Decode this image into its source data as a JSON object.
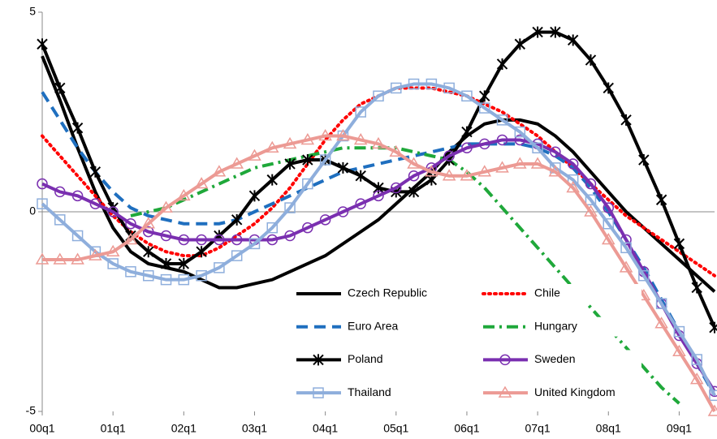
{
  "chart_data": {
    "type": "line",
    "categories": [
      "00q1",
      null,
      null,
      null,
      "01q1",
      null,
      null,
      null,
      "02q1",
      null,
      null,
      null,
      "03q1",
      null,
      null,
      null,
      "04q1",
      null,
      null,
      null,
      "05q1",
      null,
      null,
      null,
      "06q1",
      null,
      null,
      null,
      "07q1",
      null,
      null,
      null,
      "08q1",
      null,
      null,
      null,
      "09q1",
      null,
      null
    ],
    "ylim": [
      -5,
      5
    ],
    "yticks": [
      -5,
      0,
      5
    ],
    "series": [
      {
        "name": "Czech Republic",
        "color": "#000000",
        "dash": "solid",
        "marker": "none",
        "values": [
          3.9,
          2.8,
          1.6,
          0.5,
          -0.4,
          -1.0,
          -1.3,
          -1.4,
          -1.5,
          -1.7,
          -1.9,
          -1.9,
          -1.8,
          -1.7,
          -1.5,
          -1.3,
          -1.1,
          -0.8,
          -0.5,
          -0.2,
          0.2,
          0.6,
          1.0,
          1.5,
          1.9,
          2.2,
          2.3,
          2.3,
          2.2,
          1.9,
          1.5,
          1.0,
          0.5,
          0.0,
          -0.4,
          -0.8,
          -1.2,
          -1.6,
          -2.0
        ]
      },
      {
        "name": "Chile",
        "color": "#ff0000",
        "dash": "dot",
        "marker": "none",
        "values": [
          1.9,
          1.4,
          0.9,
          0.4,
          -0.1,
          -0.5,
          -0.8,
          -1.0,
          -1.1,
          -1.1,
          -0.9,
          -0.6,
          -0.3,
          0.1,
          0.6,
          1.2,
          1.8,
          2.3,
          2.7,
          2.9,
          3.1,
          3.1,
          3.1,
          3.0,
          2.9,
          2.7,
          2.5,
          2.2,
          1.9,
          1.5,
          1.1,
          0.7,
          0.3,
          -0.1,
          -0.4,
          -0.7,
          -1.0,
          -1.3,
          -1.6
        ]
      },
      {
        "name": "Euro Area",
        "color": "#1f6fbf",
        "dash": "dash",
        "marker": "none",
        "values": [
          3.0,
          2.3,
          1.6,
          1.0,
          0.5,
          0.1,
          -0.1,
          -0.2,
          -0.3,
          -0.3,
          -0.3,
          -0.2,
          0.0,
          0.2,
          0.4,
          0.6,
          0.8,
          1.0,
          1.1,
          1.2,
          1.3,
          1.4,
          1.5,
          1.6,
          1.7,
          1.7,
          1.7,
          1.7,
          1.6,
          1.4,
          1.1,
          0.6,
          0.0,
          -0.7,
          -1.4,
          -2.2,
          -3.0,
          -3.8,
          -4.6
        ]
      },
      {
        "name": "Hungary",
        "color": "#1fa83a",
        "dash": "dashdot",
        "marker": "none",
        "values": [
          null,
          null,
          null,
          null,
          null,
          -0.1,
          0.0,
          0.1,
          0.3,
          0.5,
          0.7,
          0.9,
          1.1,
          1.2,
          1.3,
          1.4,
          1.5,
          1.6,
          1.6,
          1.6,
          1.6,
          1.5,
          1.4,
          1.3,
          1.0,
          0.6,
          0.1,
          -0.4,
          -0.9,
          -1.4,
          -1.9,
          -2.4,
          -2.9,
          -3.4,
          -3.9,
          -4.4,
          -4.8,
          null,
          null
        ]
      },
      {
        "name": "Poland",
        "color": "#000000",
        "dash": "solid",
        "marker": "x",
        "values": [
          4.2,
          3.1,
          2.1,
          1.0,
          0.1,
          -0.6,
          -1.0,
          -1.3,
          -1.3,
          -1.0,
          -0.6,
          -0.2,
          0.4,
          0.8,
          1.2,
          1.3,
          1.3,
          1.1,
          0.9,
          0.6,
          0.5,
          0.5,
          0.8,
          1.3,
          2.0,
          2.9,
          3.7,
          4.2,
          4.5,
          4.5,
          4.3,
          3.8,
          3.1,
          2.3,
          1.3,
          0.3,
          -0.8,
          -1.9,
          -2.9
        ]
      },
      {
        "name": "Sweden",
        "color": "#7a2fb0",
        "dash": "solid",
        "marker": "circle",
        "values": [
          0.7,
          0.5,
          0.4,
          0.2,
          0.0,
          -0.3,
          -0.5,
          -0.6,
          -0.7,
          -0.7,
          -0.7,
          -0.7,
          -0.7,
          -0.7,
          -0.6,
          -0.4,
          -0.2,
          0.0,
          0.2,
          0.4,
          0.6,
          0.9,
          1.1,
          1.4,
          1.6,
          1.7,
          1.8,
          1.8,
          1.7,
          1.5,
          1.2,
          0.7,
          0.1,
          -0.7,
          -1.5,
          -2.3,
          -3.1,
          -3.8,
          -4.5
        ]
      },
      {
        "name": "Thailand",
        "color": "#8eaedc",
        "dash": "solid",
        "marker": "square",
        "values": [
          0.2,
          -0.2,
          -0.6,
          -1.0,
          -1.3,
          -1.5,
          -1.6,
          -1.7,
          -1.7,
          -1.6,
          -1.4,
          -1.1,
          -0.8,
          -0.4,
          0.1,
          0.7,
          1.3,
          1.9,
          2.5,
          2.9,
          3.1,
          3.2,
          3.2,
          3.1,
          2.9,
          2.6,
          2.3,
          2.0,
          1.6,
          1.1,
          0.8,
          0.3,
          -0.3,
          -0.9,
          -1.6,
          -2.3,
          -3.0,
          -3.7,
          -4.6
        ]
      },
      {
        "name": "United Kingdom",
        "color": "#ec9a94",
        "dash": "solid",
        "marker": "triangle",
        "values": [
          -1.2,
          -1.2,
          -1.2,
          -1.1,
          -1.0,
          -0.7,
          -0.3,
          0.1,
          0.4,
          0.7,
          1.0,
          1.2,
          1.4,
          1.6,
          1.7,
          1.8,
          1.9,
          1.9,
          1.8,
          1.7,
          1.5,
          1.2,
          1.0,
          0.9,
          0.9,
          1.0,
          1.1,
          1.2,
          1.2,
          1.0,
          0.6,
          0.0,
          -0.7,
          -1.4,
          -2.1,
          -2.8,
          -3.5,
          -4.2,
          -5.0
        ]
      }
    ]
  }
}
